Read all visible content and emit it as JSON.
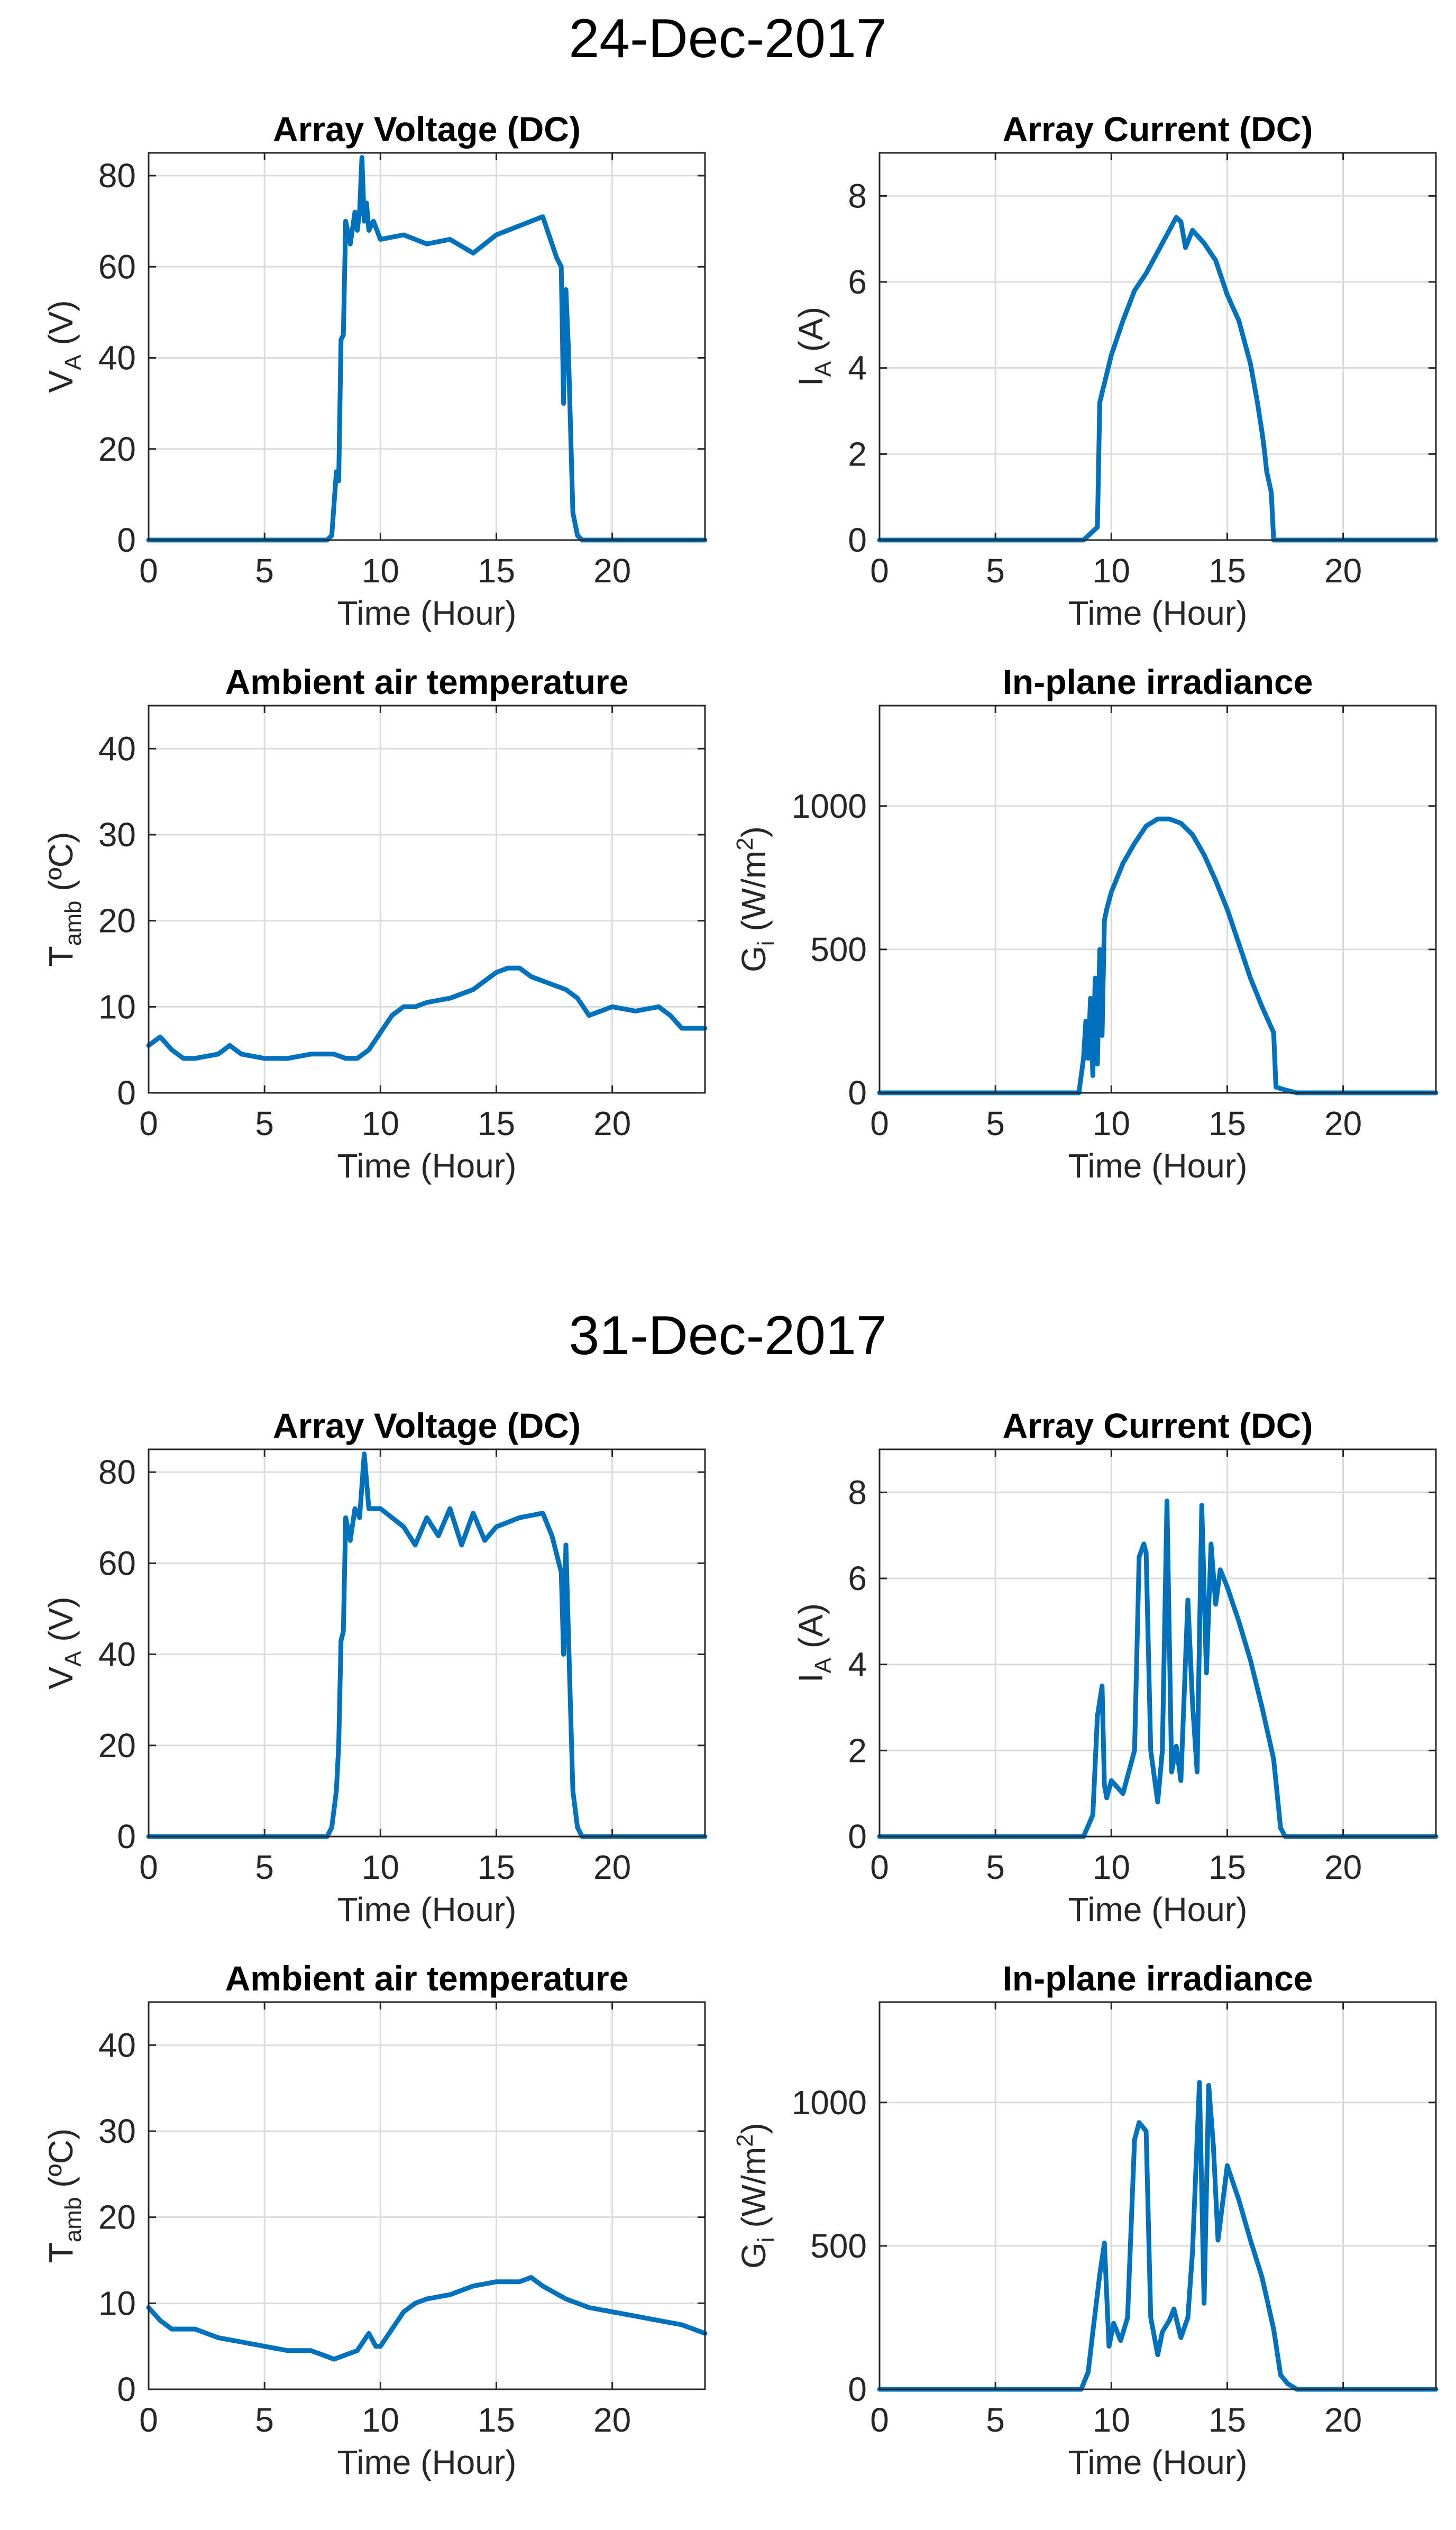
{
  "figure": {
    "title_top": "24-Dec-2017",
    "title_bottom": "31-Dec-2017",
    "xlabel": "Time (Hour)"
  },
  "chart_data": [
    {
      "type": "line",
      "figure": "24-Dec-2017",
      "title": "Array Voltage (DC)",
      "xlabel": "Time (Hour)",
      "ylabel": "V_A (V)",
      "ylabel_parts": {
        "pre": "V",
        "sub": "A",
        "post": " (V)",
        "sup": ""
      },
      "xlim": [
        0,
        24
      ],
      "ylim": [
        0,
        85
      ],
      "xticks": [
        0,
        5,
        10,
        15,
        20
      ],
      "yticks": [
        0,
        20,
        40,
        60,
        80
      ],
      "grid": true,
      "x": [
        0,
        7.7,
        7.9,
        8.1,
        8.2,
        8.3,
        8.4,
        8.5,
        8.7,
        8.9,
        9.0,
        9.1,
        9.2,
        9.3,
        9.4,
        9.5,
        9.7,
        10,
        11,
        12,
        13,
        14,
        15,
        16,
        17,
        17.4,
        17.6,
        17.8,
        17.9,
        18.0,
        18.1,
        18.3,
        18.5,
        18.7,
        24
      ],
      "y": [
        0,
        0,
        1,
        15,
        13,
        44,
        45,
        70,
        65,
        72,
        68,
        72,
        84,
        70,
        74,
        68,
        70,
        66,
        67,
        65,
        66,
        63,
        67,
        69,
        71,
        65,
        62,
        60,
        30,
        55,
        43,
        6,
        1,
        0,
        0
      ]
    },
    {
      "type": "line",
      "figure": "24-Dec-2017",
      "title": "Array Current (DC)",
      "xlabel": "Time (Hour)",
      "ylabel": "I_A (A)",
      "ylabel_parts": {
        "pre": "I",
        "sub": "A",
        "post": " (A)",
        "sup": ""
      },
      "xlim": [
        0,
        24
      ],
      "ylim": [
        0,
        9
      ],
      "xticks": [
        0,
        5,
        10,
        15,
        20
      ],
      "yticks": [
        0,
        2,
        4,
        6,
        8
      ],
      "grid": true,
      "x": [
        0,
        8.8,
        9.4,
        9.5,
        10,
        10.5,
        11,
        11.5,
        12,
        12.5,
        12.8,
        13,
        13.2,
        13.5,
        14,
        14.5,
        15,
        15.5,
        16,
        16.3,
        16.5,
        16.6,
        16.7,
        16.9,
        17.0,
        24
      ],
      "y": [
        0,
        0,
        0.3,
        3.2,
        4.3,
        5.1,
        5.8,
        6.2,
        6.7,
        7.2,
        7.5,
        7.4,
        6.8,
        7.2,
        6.9,
        6.5,
        5.7,
        5.1,
        4.1,
        3.2,
        2.5,
        2.1,
        1.6,
        1.1,
        0,
        0
      ]
    },
    {
      "type": "line",
      "figure": "24-Dec-2017",
      "title": "Ambient air temperature",
      "xlabel": "Time (Hour)",
      "ylabel": "T_amb (ºC)",
      "ylabel_parts": {
        "pre": "T",
        "sub": "amb",
        "post": " (ºC)",
        "sup": ""
      },
      "xlim": [
        0,
        24
      ],
      "ylim": [
        0,
        45
      ],
      "xticks": [
        0,
        5,
        10,
        15,
        20
      ],
      "yticks": [
        0,
        10,
        20,
        30,
        40
      ],
      "grid": true,
      "x": [
        0,
        0.5,
        1,
        1.5,
        2,
        3,
        3.5,
        4,
        5,
        6,
        7,
        8,
        8.5,
        9,
        9.5,
        10,
        10.5,
        11,
        11.5,
        12,
        13,
        14,
        15,
        15.5,
        16,
        16.5,
        17,
        18,
        18.5,
        19,
        19.5,
        20,
        21,
        22,
        22.5,
        23,
        24
      ],
      "y": [
        5.5,
        6.5,
        5,
        4,
        4,
        4.5,
        5.5,
        4.5,
        4,
        4,
        4.5,
        4.5,
        4,
        4,
        5,
        7,
        9,
        10,
        10,
        10.5,
        11,
        12,
        14,
        14.5,
        14.5,
        13.5,
        13,
        12,
        11,
        9,
        9.5,
        10,
        9.5,
        10,
        9,
        7.5,
        7.5
      ]
    },
    {
      "type": "line",
      "figure": "24-Dec-2017",
      "title": "In-plane irradiance",
      "xlabel": "Time (Hour)",
      "ylabel": "G_i (W/m^2)",
      "ylabel_parts": {
        "pre": "G",
        "sub": "i",
        "post": " (W/m",
        "sup": "2",
        "end": ")"
      },
      "xlim": [
        0,
        24
      ],
      "ylim": [
        0,
        1350
      ],
      "xticks": [
        0,
        5,
        10,
        15,
        20
      ],
      "yticks": [
        0,
        500,
        1000
      ],
      "grid": true,
      "x": [
        0,
        8.6,
        8.8,
        8.9,
        9.0,
        9.1,
        9.2,
        9.3,
        9.4,
        9.5,
        9.6,
        9.7,
        9.8,
        10,
        10.5,
        11,
        11.5,
        12,
        12.5,
        13,
        13.5,
        14,
        14.5,
        15,
        15.5,
        16,
        16.5,
        17,
        17.1,
        17.5,
        18,
        24
      ],
      "y": [
        0,
        0,
        120,
        250,
        120,
        330,
        60,
        400,
        100,
        500,
        200,
        600,
        640,
        700,
        800,
        870,
        930,
        955,
        955,
        940,
        900,
        830,
        740,
        640,
        520,
        400,
        300,
        210,
        20,
        10,
        0,
        0
      ]
    },
    {
      "type": "line",
      "figure": "31-Dec-2017",
      "title": "Array Voltage (DC)",
      "xlabel": "Time (Hour)",
      "ylabel": "V_A (V)",
      "ylabel_parts": {
        "pre": "V",
        "sub": "A",
        "post": " (V)",
        "sup": ""
      },
      "xlim": [
        0,
        24
      ],
      "ylim": [
        0,
        85
      ],
      "xticks": [
        0,
        5,
        10,
        15,
        20
      ],
      "yticks": [
        0,
        20,
        40,
        60,
        80
      ],
      "grid": true,
      "x": [
        0,
        7.7,
        7.9,
        8.1,
        8.2,
        8.3,
        8.4,
        8.5,
        8.7,
        8.9,
        9.1,
        9.3,
        9.5,
        10,
        10.5,
        11,
        11.5,
        12,
        12.5,
        13,
        13.5,
        14,
        14.5,
        15,
        16,
        17,
        17.4,
        17.6,
        17.8,
        17.9,
        18.0,
        18.1,
        18.3,
        18.5,
        18.7,
        24
      ],
      "y": [
        0,
        0,
        2,
        10,
        20,
        43,
        45,
        70,
        65,
        72,
        70,
        84,
        72,
        72,
        70,
        68,
        64,
        70,
        66,
        72,
        64,
        71,
        65,
        68,
        70,
        71,
        66,
        62,
        58,
        40,
        64,
        46,
        10,
        2,
        0,
        0
      ]
    },
    {
      "type": "line",
      "figure": "31-Dec-2017",
      "title": "Array Current (DC)",
      "xlabel": "Time (Hour)",
      "ylabel": "I_A (A)",
      "ylabel_parts": {
        "pre": "I",
        "sub": "A",
        "post": " (A)",
        "sup": ""
      },
      "xlim": [
        0,
        24
      ],
      "ylim": [
        0,
        9
      ],
      "xticks": [
        0,
        5,
        10,
        15,
        20
      ],
      "yticks": [
        0,
        2,
        4,
        6,
        8
      ],
      "grid": true,
      "x": [
        0,
        8.8,
        9.2,
        9.4,
        9.6,
        9.7,
        9.8,
        10,
        10.5,
        11,
        11.2,
        11.4,
        11.5,
        11.7,
        12,
        12.2,
        12.4,
        12.6,
        12.8,
        13,
        13.3,
        13.5,
        13.7,
        13.9,
        14.1,
        14.3,
        14.5,
        14.7,
        15,
        15.5,
        16,
        16.5,
        17,
        17.3,
        17.5,
        24
      ],
      "y": [
        0,
        0,
        0.5,
        2.8,
        3.5,
        1.2,
        0.9,
        1.3,
        1.0,
        2.0,
        6.5,
        6.8,
        6.6,
        2.0,
        0.8,
        2.0,
        7.8,
        1.5,
        2.1,
        1.3,
        5.5,
        3.1,
        1.5,
        7.7,
        3.8,
        6.8,
        5.4,
        6.2,
        5.8,
        5.0,
        4.1,
        3.0,
        1.8,
        0.2,
        0,
        0
      ]
    },
    {
      "type": "line",
      "figure": "31-Dec-2017",
      "title": "Ambient air temperature",
      "xlabel": "Time (Hour)",
      "ylabel": "T_amb (ºC)",
      "ylabel_parts": {
        "pre": "T",
        "sub": "amb",
        "post": " (ºC)",
        "sup": ""
      },
      "xlim": [
        0,
        24
      ],
      "ylim": [
        0,
        45
      ],
      "xticks": [
        0,
        5,
        10,
        15,
        20
      ],
      "yticks": [
        0,
        10,
        20,
        30,
        40
      ],
      "grid": true,
      "x": [
        0,
        0.5,
        1,
        2,
        3,
        4,
        5,
        6,
        7,
        7.5,
        8,
        8.5,
        9,
        9.5,
        9.8,
        10,
        10.5,
        11,
        11.5,
        12,
        13,
        14,
        15,
        16,
        16.5,
        17,
        18,
        19,
        20,
        21,
        22,
        23,
        24
      ],
      "y": [
        9.5,
        8,
        7,
        7,
        6,
        5.5,
        5,
        4.5,
        4.5,
        4,
        3.5,
        4,
        4.5,
        6.5,
        5,
        5,
        7,
        9,
        10,
        10.5,
        11,
        12,
        12.5,
        12.5,
        13,
        12,
        10.5,
        9.5,
        9,
        8.5,
        8,
        7.5,
        6.5
      ]
    },
    {
      "type": "line",
      "figure": "31-Dec-2017",
      "title": "In-plane irradiance",
      "xlabel": "Time (Hour)",
      "ylabel": "G_i (W/m^2)",
      "ylabel_parts": {
        "pre": "G",
        "sub": "i",
        "post": " (W/m",
        "sup": "2",
        "end": ")"
      },
      "xlim": [
        0,
        24
      ],
      "ylim": [
        0,
        1350
      ],
      "xticks": [
        0,
        5,
        10,
        15,
        20
      ],
      "yticks": [
        0,
        500,
        1000
      ],
      "grid": true,
      "x": [
        0,
        8.7,
        9.0,
        9.2,
        9.5,
        9.7,
        9.9,
        10.1,
        10.4,
        10.7,
        11.0,
        11.2,
        11.5,
        11.7,
        12.0,
        12.2,
        12.5,
        12.7,
        13.0,
        13.3,
        13.5,
        13.8,
        14.0,
        14.2,
        14.4,
        14.6,
        15.0,
        15.5,
        16.0,
        16.5,
        17.0,
        17.3,
        17.6,
        18.0,
        24
      ],
      "y": [
        0,
        0,
        60,
        200,
        400,
        510,
        150,
        230,
        170,
        250,
        870,
        930,
        900,
        250,
        120,
        200,
        240,
        280,
        180,
        250,
        480,
        1070,
        300,
        1060,
        850,
        520,
        780,
        660,
        520,
        390,
        210,
        50,
        20,
        0,
        0
      ]
    }
  ]
}
